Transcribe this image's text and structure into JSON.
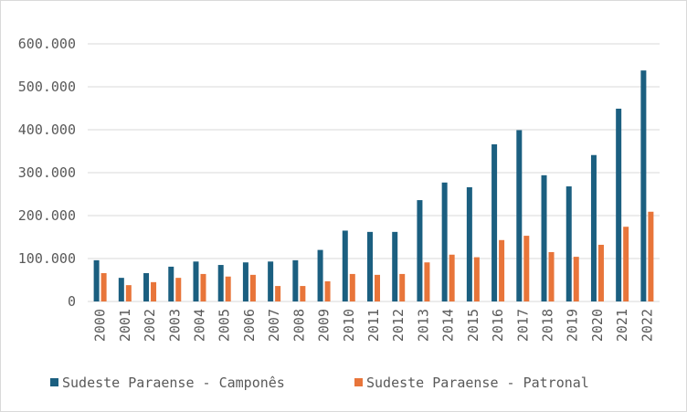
{
  "colors": {
    "campones": "#1b5f80",
    "patronal": "#e8753a",
    "grid": "#d9d9d9",
    "text": "#595959"
  },
  "chart_data": {
    "type": "bar",
    "categories": [
      "2000",
      "2001",
      "2002",
      "2003",
      "2004",
      "2005",
      "2006",
      "2007",
      "2008",
      "2009",
      "2010",
      "2011",
      "2012",
      "2013",
      "2014",
      "2015",
      "2016",
      "2017",
      "2018",
      "2019",
      "2020",
      "2021",
      "2022"
    ],
    "series": [
      {
        "name": "Sudeste Paraense - Camponês",
        "color": "#1b5f80",
        "values": [
          96000,
          55000,
          66000,
          81000,
          93000,
          85000,
          91000,
          93000,
          96000,
          120000,
          165000,
          162000,
          162000,
          236000,
          277000,
          266000,
          366000,
          399000,
          294000,
          268000,
          341000,
          449000,
          538000
        ]
      },
      {
        "name": "Sudeste Paraense - Patronal",
        "color": "#e8753a",
        "values": [
          66000,
          38000,
          45000,
          55000,
          64000,
          58000,
          62000,
          36000,
          36000,
          47000,
          64000,
          62000,
          64000,
          91000,
          109000,
          103000,
          143000,
          153000,
          115000,
          104000,
          132000,
          174000,
          209000
        ]
      }
    ],
    "ylim": [
      0,
      600000
    ],
    "yticks": [
      0,
      100000,
      200000,
      300000,
      400000,
      500000,
      600000
    ],
    "ytick_labels": [
      "0",
      "100.000",
      "200.000",
      "300.000",
      "400.000",
      "500.000",
      "600.000"
    ],
    "grid": true,
    "legend": "bottom"
  }
}
